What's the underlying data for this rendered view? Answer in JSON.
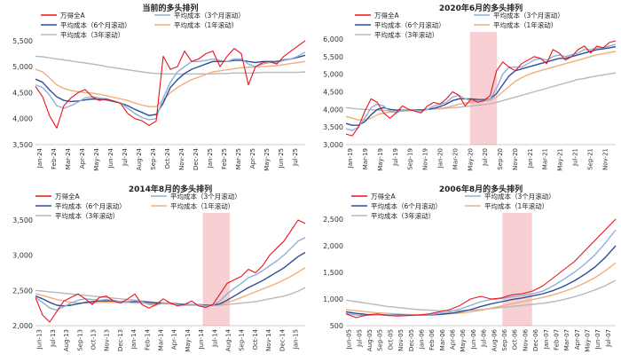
{
  "colors": {
    "wande": "#e8141c",
    "avg3m": "#8fb0d8",
    "avg6m": "#2e4e9a",
    "avg1y": "#f2ae7a",
    "avg3y": "#b8b8b8",
    "shade": "#f8cfd3"
  },
  "chart_data": [
    {
      "type": "line",
      "title": "当前的多头排列",
      "yticks": [
        3500,
        4000,
        4500,
        5000,
        5500
      ],
      "ylim": [
        3500,
        5600
      ],
      "xticks": [
        "Jan-24",
        "Feb-24",
        "Mar-24",
        "Apr-24",
        "May-24",
        "Jun-24",
        "Jul-24",
        "Aug-24",
        "Sep-24",
        "Oct-24",
        "Nov-24",
        "Dec-24",
        "Jan-25",
        "Feb-25",
        "Mar-25",
        "Apr-25",
        "May-25",
        "Jun-25",
        "Jul-25"
      ],
      "legend": [
        "万得全A",
        "平均成本（3个月滚动）",
        "平均成本（6个月滚动）",
        "平均成本（1年滚动）",
        "平均成本（3年滚动）"
      ],
      "shade": null,
      "series": {
        "wande": [
          4620,
          4420,
          4050,
          3820,
          4250,
          4400,
          4500,
          4560,
          4420,
          4350,
          4380,
          4340,
          4290,
          4100,
          4000,
          3960,
          3870,
          3950,
          5200,
          4950,
          5000,
          5300,
          5100,
          5150,
          5250,
          5300,
          5000,
          5200,
          5350,
          5250,
          4650,
          5000,
          5080,
          5100,
          5050,
          5200,
          5300,
          5400,
          5500
        ],
        "avg3m": [
          4650,
          4600,
          4450,
          4250,
          4200,
          4250,
          4320,
          4400,
          4420,
          4400,
          4380,
          4340,
          4300,
          4200,
          4100,
          4020,
          3980,
          4000,
          4400,
          4700,
          4900,
          5000,
          5100,
          5100,
          5120,
          5150,
          5120,
          5100,
          5150,
          5150,
          5050,
          5000,
          5050,
          5080,
          5080,
          5120,
          5150,
          5200,
          5280
        ],
        "avg6m": [
          4760,
          4700,
          4550,
          4420,
          4350,
          4330,
          4340,
          4360,
          4380,
          4370,
          4360,
          4330,
          4300,
          4250,
          4180,
          4120,
          4060,
          4080,
          4300,
          4600,
          4750,
          4870,
          4950,
          5000,
          5050,
          5100,
          5100,
          5100,
          5120,
          5120,
          5100,
          5080,
          5100,
          5100,
          5100,
          5130,
          5150,
          5180,
          5220
        ],
        "avg1y": [
          4950,
          4900,
          4780,
          4650,
          4580,
          4540,
          4520,
          4500,
          4490,
          4470,
          4440,
          4410,
          4380,
          4350,
          4300,
          4260,
          4230,
          4230,
          4360,
          4500,
          4600,
          4680,
          4750,
          4800,
          4850,
          4900,
          4920,
          4940,
          4960,
          4980,
          4990,
          4990,
          5000,
          5010,
          5020,
          5040,
          5060,
          5080,
          5100
        ],
        "avg3y": [
          5200,
          5190,
          5170,
          5150,
          5130,
          5110,
          5090,
          5070,
          5050,
          5030,
          5000,
          4980,
          4960,
          4940,
          4920,
          4900,
          4880,
          4870,
          4860,
          4860,
          4860,
          4860,
          4860,
          4860,
          4860,
          4860,
          4870,
          4870,
          4880,
          4880,
          4880,
          4880,
          4890,
          4890,
          4890,
          4890,
          4890,
          4890,
          4900
        ]
      }
    },
    {
      "type": "line",
      "title": "2020年6月的多头排列",
      "yticks": [
        3000,
        3500,
        4000,
        4500,
        5000,
        5500,
        6000
      ],
      "ylim": [
        3000,
        6100
      ],
      "xticks": [
        "Jan-19",
        "Mar-19",
        "May-19",
        "Jul-19",
        "Sep-19",
        "Nov-19",
        "Jan-20",
        "Mar-20",
        "May-20",
        "Jul-20",
        "Sep-20",
        "Nov-20",
        "Jan-21",
        "Mar-21",
        "May-21",
        "Jul-21",
        "Sep-21",
        "Nov-21"
      ],
      "legend": [
        "万得全A",
        "平均成本（3个月滚动）",
        "平均成本（6个月滚动）",
        "平均成本（1年滚动）",
        "平均成本（3年滚动）"
      ],
      "shade": [
        0.46,
        0.56
      ],
      "series": {
        "wande": [
          3300,
          3250,
          3500,
          3950,
          4300,
          4200,
          3900,
          3750,
          3900,
          4100,
          4000,
          3950,
          3900,
          4100,
          4200,
          4150,
          4300,
          4500,
          4400,
          4100,
          4300,
          4200,
          4250,
          4400,
          5100,
          5350,
          5200,
          5100,
          5300,
          5400,
          5500,
          5450,
          5300,
          5700,
          5600,
          5400,
          5500,
          5700,
          5800,
          5600,
          5800,
          5750,
          5900,
          5950
        ],
        "avg3m": [
          3450,
          3400,
          3500,
          3750,
          4050,
          4150,
          4100,
          3950,
          3900,
          3980,
          4000,
          3980,
          3950,
          4000,
          4100,
          4150,
          4200,
          4350,
          4400,
          4300,
          4250,
          4250,
          4250,
          4300,
          4600,
          5000,
          5200,
          5200,
          5200,
          5300,
          5400,
          5450,
          5400,
          5500,
          5550,
          5500,
          5550,
          5600,
          5700,
          5700,
          5750,
          5750,
          5800,
          5850
        ],
        "avg6m": [
          3600,
          3550,
          3550,
          3650,
          3850,
          4000,
          4050,
          4000,
          3980,
          3980,
          3990,
          3990,
          3980,
          4000,
          4030,
          4080,
          4150,
          4250,
          4300,
          4300,
          4300,
          4280,
          4280,
          4300,
          4450,
          4700,
          4950,
          5100,
          5150,
          5200,
          5250,
          5300,
          5350,
          5400,
          5450,
          5450,
          5500,
          5550,
          5600,
          5650,
          5700,
          5720,
          5750,
          5780
        ],
        "avg1y": [
          3800,
          3750,
          3700,
          3700,
          3750,
          3850,
          3900,
          3920,
          3930,
          3950,
          3970,
          3980,
          3990,
          4000,
          4010,
          4030,
          4060,
          4100,
          4150,
          4180,
          4200,
          4220,
          4230,
          4250,
          4350,
          4500,
          4650,
          4800,
          4900,
          4980,
          5050,
          5100,
          5150,
          5200,
          5250,
          5300,
          5350,
          5400,
          5450,
          5500,
          5550,
          5580,
          5620,
          5650
        ],
        "avg3y": [
          4050,
          4030,
          4010,
          4000,
          3990,
          3980,
          3970,
          3960,
          3950,
          3950,
          3960,
          3980,
          3990,
          4000,
          4010,
          4020,
          4030,
          4050,
          4060,
          4080,
          4100,
          4120,
          4140,
          4160,
          4200,
          4250,
          4300,
          4350,
          4400,
          4450,
          4500,
          4550,
          4600,
          4650,
          4700,
          4750,
          4800,
          4850,
          4880,
          4920,
          4950,
          4980,
          5010,
          5040
        ]
      }
    },
    {
      "type": "line",
      "title": "2014年8月的多头排列",
      "yticks": [
        2000,
        2500,
        3000,
        3500
      ],
      "ylim": [
        2000,
        3550
      ],
      "xticks": [
        "Jun-13",
        "Jul-13",
        "Aug-13",
        "Sep-13",
        "Oct-13",
        "Nov-13",
        "Dec-13",
        "Jan-14",
        "Feb-14",
        "Mar-14",
        "Apr-14",
        "May-14",
        "Jun-14",
        "Jul-14",
        "Aug-14",
        "Sep-14",
        "Oct-14",
        "Nov-14",
        "Dec-14",
        "Jan-15"
      ],
      "legend": [
        "万得全A",
        "平均成本（3个月滚动）",
        "平均成本（6个月滚动）",
        "平均成本（1年滚动）",
        "平均成本（3年滚动）"
      ],
      "shade": [
        0.62,
        0.72
      ],
      "series": {
        "wande": [
          2400,
          2150,
          2050,
          2200,
          2350,
          2400,
          2450,
          2380,
          2300,
          2400,
          2420,
          2350,
          2320,
          2380,
          2450,
          2300,
          2250,
          2300,
          2380,
          2320,
          2280,
          2300,
          2350,
          2280,
          2260,
          2300,
          2450,
          2600,
          2650,
          2700,
          2800,
          2750,
          2850,
          3000,
          3100,
          3200,
          3350,
          3500,
          3450
        ],
        "avg3m": [
          2400,
          2330,
          2250,
          2220,
          2270,
          2320,
          2360,
          2380,
          2370,
          2360,
          2370,
          2360,
          2340,
          2340,
          2360,
          2340,
          2300,
          2290,
          2320,
          2320,
          2300,
          2290,
          2300,
          2300,
          2280,
          2290,
          2350,
          2450,
          2530,
          2600,
          2680,
          2720,
          2780,
          2850,
          2920,
          3000,
          3100,
          3200,
          3250
        ],
        "avg6m": [
          2420,
          2380,
          2330,
          2290,
          2280,
          2290,
          2310,
          2330,
          2340,
          2350,
          2350,
          2350,
          2340,
          2340,
          2340,
          2340,
          2330,
          2320,
          2320,
          2320,
          2310,
          2300,
          2300,
          2300,
          2290,
          2290,
          2310,
          2360,
          2420,
          2480,
          2540,
          2590,
          2640,
          2700,
          2760,
          2820,
          2900,
          2980,
          3040
        ],
        "avg1y": [
          2450,
          2430,
          2400,
          2370,
          2350,
          2330,
          2320,
          2320,
          2320,
          2330,
          2330,
          2330,
          2330,
          2330,
          2320,
          2320,
          2310,
          2310,
          2310,
          2310,
          2300,
          2300,
          2300,
          2300,
          2290,
          2290,
          2300,
          2330,
          2360,
          2400,
          2440,
          2480,
          2520,
          2560,
          2600,
          2650,
          2700,
          2760,
          2820
        ],
        "avg3y": [
          2500,
          2490,
          2480,
          2470,
          2460,
          2450,
          2440,
          2430,
          2420,
          2410,
          2400,
          2390,
          2380,
          2370,
          2360,
          2350,
          2340,
          2330,
          2320,
          2310,
          2300,
          2290,
          2290,
          2290,
          2290,
          2290,
          2290,
          2300,
          2310,
          2320,
          2330,
          2340,
          2360,
          2380,
          2400,
          2420,
          2450,
          2490,
          2540
        ]
      }
    },
    {
      "type": "line",
      "title": "2006年8月的多头排列",
      "yticks": [
        500,
        1000,
        1500,
        2000,
        2500
      ],
      "ylim": [
        500,
        2550
      ],
      "xticks": [
        "Jun-05",
        "Jul-05",
        "Aug-05",
        "Sep-05",
        "Oct-05",
        "Nov-05",
        "Dec-05",
        "Jan-06",
        "Feb-06",
        "Mar-06",
        "Apr-06",
        "May-06",
        "Jun-06",
        "Jul-06",
        "Aug-06",
        "Sep-06",
        "Oct-06",
        "Nov-06",
        "Dec-06",
        "Jan-07",
        "Feb-07",
        "Mar-07",
        "Apr-07",
        "May-07",
        "Jun-07",
        "Jul-07"
      ],
      "legend": [
        "万得全A",
        "平均成本（3个月滚动）",
        "平均成本（6个月滚动）",
        "平均成本（1年滚动）",
        "平均成本（3年滚动）"
      ],
      "shade": [
        0.58,
        0.69
      ],
      "series": {
        "wande": [
          720,
          650,
          700,
          720,
          690,
          680,
          690,
          700,
          720,
          760,
          800,
          880,
          1000,
          1050,
          1000,
          1020,
          1080,
          1100,
          1150,
          1250,
          1400,
          1550,
          1700,
          1900,
          2100,
          2300,
          2500
        ],
        "avg3m": [
          730,
          700,
          690,
          700,
          700,
          690,
          690,
          695,
          705,
          730,
          760,
          810,
          880,
          950,
          990,
          1010,
          1040,
          1070,
          1100,
          1150,
          1250,
          1370,
          1500,
          1650,
          1830,
          2050,
          2300
        ],
        "avg6m": [
          760,
          730,
          710,
          705,
          700,
          700,
          695,
          695,
          700,
          710,
          730,
          760,
          800,
          860,
          910,
          950,
          990,
          1020,
          1060,
          1100,
          1160,
          1240,
          1340,
          1460,
          1600,
          1780,
          2000
        ],
        "avg1y": [
          800,
          780,
          760,
          740,
          730,
          720,
          710,
          705,
          705,
          710,
          720,
          735,
          760,
          790,
          830,
          870,
          910,
          950,
          990,
          1030,
          1080,
          1140,
          1210,
          1300,
          1400,
          1530,
          1680
        ],
        "avg3y": [
          980,
          950,
          920,
          890,
          860,
          840,
          820,
          800,
          790,
          780,
          780,
          780,
          790,
          800,
          820,
          840,
          860,
          880,
          900,
          920,
          950,
          990,
          1040,
          1100,
          1170,
          1250,
          1350
        ]
      }
    }
  ]
}
